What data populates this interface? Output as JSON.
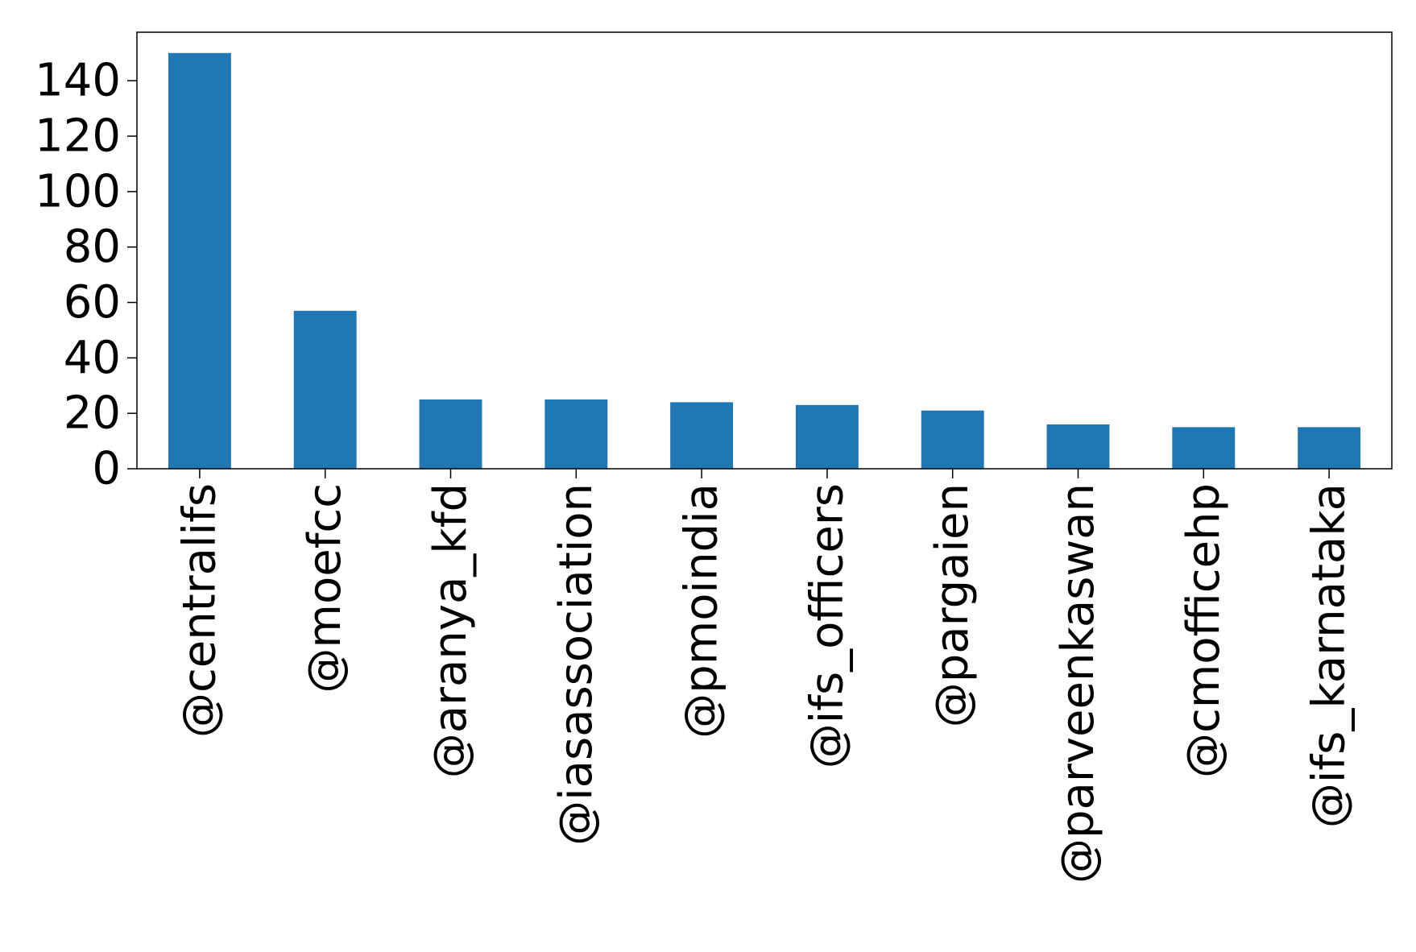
{
  "chart_data": {
    "type": "bar",
    "title": "",
    "xlabel": "",
    "ylabel": "",
    "categories": [
      "@centralifs",
      "@moefcc",
      "@aranya_kfd",
      "@iasassociation",
      "@pmoindia",
      "@ifs_officers",
      "@pargaien",
      "@parveenkaswan",
      "@cmofficehp",
      "@ifs_karnataka"
    ],
    "values": [
      150,
      57,
      25,
      25,
      24,
      23,
      21,
      16,
      15,
      15
    ],
    "ylim": [
      0,
      157.5
    ],
    "yticks": [
      0,
      20,
      40,
      60,
      80,
      100,
      120,
      140
    ],
    "grid": false,
    "legend": "none",
    "bar_color": "#1f77b4"
  }
}
